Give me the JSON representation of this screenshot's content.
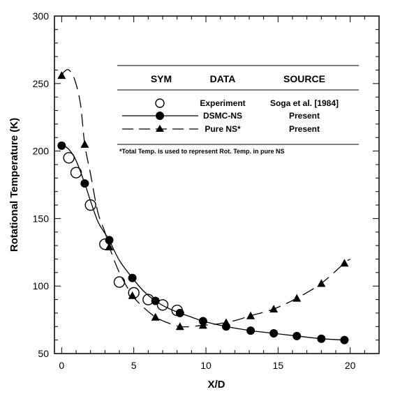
{
  "chart_data": {
    "type": "line",
    "title": "",
    "xlabel": "X/D",
    "ylabel": "Rotational Temperature (K)",
    "xlim": [
      -0.5,
      22
    ],
    "ylim": [
      50,
      300
    ],
    "x_ticks": [
      0,
      5,
      10,
      15,
      20
    ],
    "x_tick_labels": [
      "0",
      "5",
      "10",
      "15",
      "20"
    ],
    "y_ticks": [
      50,
      100,
      150,
      200,
      250,
      300
    ],
    "y_tick_labels": [
      "50",
      "100",
      "150",
      "200",
      "250",
      "300"
    ],
    "legend": {
      "placement": "top-right",
      "headers": [
        "SYM",
        "DATA",
        "SOURCE"
      ],
      "footnote": "*Total Temp. is used to represent Rot. Temp. in pure NS"
    },
    "series": [
      {
        "name": "Experiment",
        "source": "Soga et al. [1984]",
        "style": "open-circle",
        "x": [
          0.5,
          1.0,
          2.0,
          3.0,
          4.0,
          5.0,
          6.0,
          7.0,
          8.0
        ],
        "y": [
          195,
          184,
          160,
          131,
          103,
          95,
          90,
          86,
          82
        ]
      },
      {
        "name": "DSMC-NS",
        "source": "Present",
        "style": "solid-line-filled-circle",
        "x": [
          0,
          1.6,
          3.3,
          4.9,
          6.5,
          8.2,
          9.8,
          11.4,
          13.1,
          14.7,
          16.3,
          18.0,
          19.6
        ],
        "y": [
          204,
          176,
          134,
          106,
          89,
          80,
          74,
          70,
          67,
          65,
          63,
          61,
          60
        ],
        "curve": {
          "x": [
            0,
            0.3,
            0.6,
            1.0,
            1.6,
            2.0,
            2.5,
            3.0,
            3.3,
            4.0,
            4.9,
            5.7,
            6.5,
            7.3,
            8.2,
            9.0,
            9.8,
            11.4,
            13.1,
            14.7,
            16.3,
            18.0,
            19.6
          ],
          "y": [
            204,
            203,
            200,
            193,
            176,
            163,
            148,
            139,
            134,
            119,
            106,
            96,
            89,
            84,
            80,
            77,
            74,
            70,
            67,
            65,
            63,
            61,
            60
          ]
        }
      },
      {
        "name": "Pure NS*",
        "source": "Present",
        "style": "dashed-line-filled-triangle",
        "x": [
          0,
          1.6,
          3.3,
          4.9,
          6.5,
          8.2,
          9.8,
          11.4,
          13.1,
          14.7,
          16.3,
          18.0,
          19.6
        ],
        "y": [
          256,
          205,
          129,
          93,
          77,
          70,
          71,
          73,
          78,
          83,
          91,
          102,
          117
        ],
        "curve": {
          "x": [
            0,
            0.2,
            0.5,
            0.9,
            1.3,
            1.6,
            2.0,
            2.5,
            3.0,
            3.3,
            4.0,
            4.9,
            5.7,
            6.5,
            7.3,
            8.2,
            9.0,
            9.8,
            10.5,
            11.4,
            12.2,
            13.1,
            14.7,
            16.3,
            18.0,
            19.6,
            20.0
          ],
          "y": [
            256,
            259,
            260,
            253,
            235,
            205,
            183,
            155,
            140,
            129,
            110,
            93,
            84,
            77,
            73,
            70,
            70,
            71,
            71.5,
            73,
            75,
            78,
            83,
            91,
            102,
            117,
            120
          ]
        }
      }
    ]
  }
}
